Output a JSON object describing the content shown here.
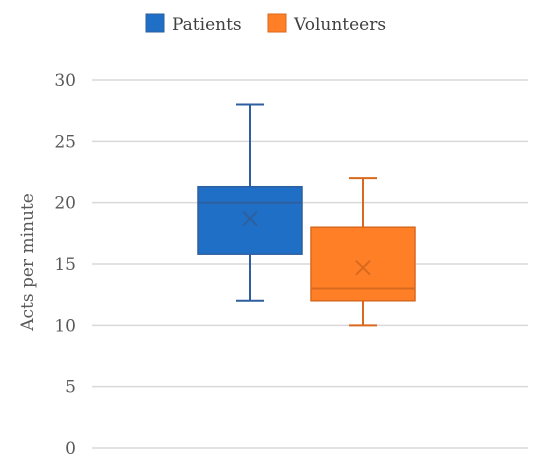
{
  "chart_data": {
    "type": "box",
    "ylabel": "Acts per minute",
    "ylim": [
      0,
      30
    ],
    "yticks": [
      "0",
      "5",
      "10",
      "15",
      "20",
      "25",
      "30"
    ],
    "grid": true,
    "legend_position": "top",
    "series": [
      {
        "name": "Patients",
        "color": "#1f6fc6",
        "stroke": "#2e5f9e",
        "min": 12,
        "q1": 15.8,
        "median": 20,
        "q3": 21.3,
        "max": 28,
        "mean": 18.7
      },
      {
        "name": "Volunteers",
        "color": "#ff7f27",
        "stroke": "#d9691e",
        "min": 10,
        "q1": 12,
        "median": 13,
        "q3": 18,
        "max": 22,
        "mean": 14.7
      }
    ]
  }
}
